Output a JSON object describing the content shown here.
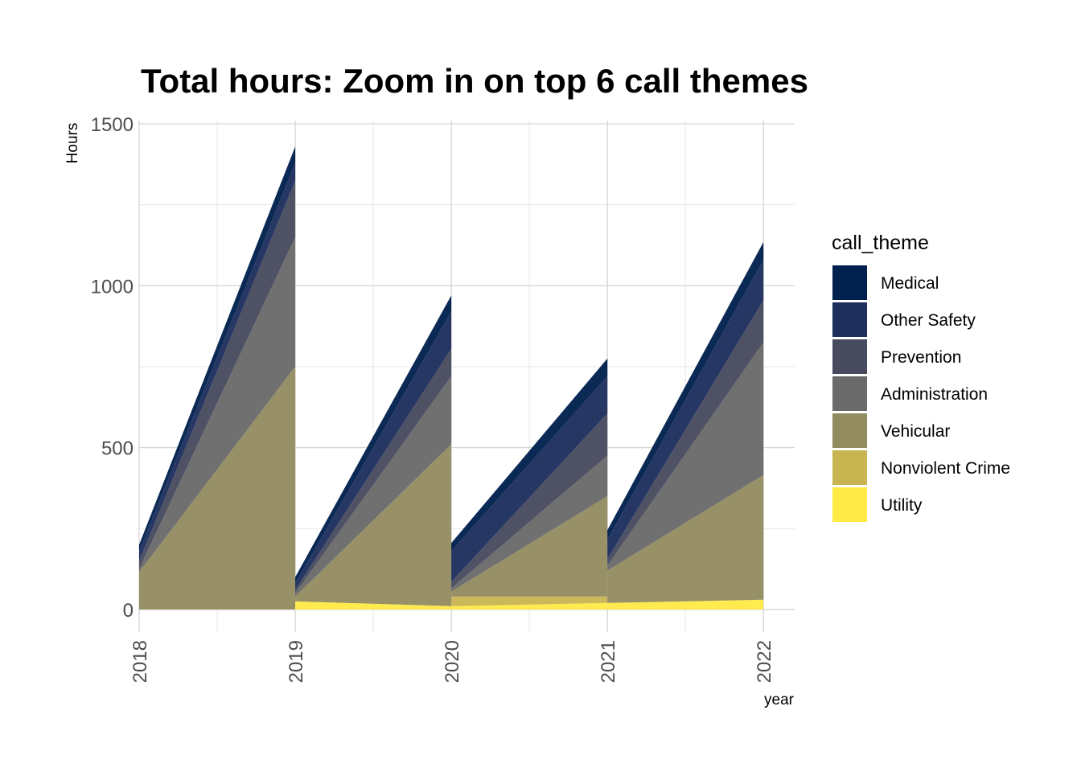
{
  "chart_data": {
    "type": "area",
    "title": "Total hours: Zoom in on top 6 call themes",
    "xlabel": "year",
    "ylabel": "Hours",
    "x_ticks": [
      "2018",
      "2019",
      "2020",
      "2021",
      "2022"
    ],
    "y_ticks": [
      "0",
      "500",
      "1000",
      "1500"
    ],
    "xlim": [
      2018,
      2022.2
    ],
    "ylim": [
      -70,
      1510
    ],
    "grid": true,
    "legend": {
      "title": "call_theme",
      "placement": "right"
    },
    "stack_order_bottom_to_top": [
      "Utility",
      "Nonviolent Crime",
      "Vehicular",
      "Administration",
      "Prevention",
      "Other Safety",
      "Medical"
    ],
    "segments": [
      {
        "x_start": 2018,
        "x_end": 2019,
        "series": [
          {
            "name": "Utility",
            "start": 0,
            "end": 0
          },
          {
            "name": "Nonviolent Crime",
            "start": 0,
            "end": 0
          },
          {
            "name": "Vehicular",
            "start": 115,
            "end": 750
          },
          {
            "name": "Administration",
            "start": 10,
            "end": 400
          },
          {
            "name": "Prevention",
            "start": 25,
            "end": 175
          },
          {
            "name": "Other Safety",
            "start": 30,
            "end": 55
          },
          {
            "name": "Medical",
            "start": 20,
            "end": 50
          }
        ]
      },
      {
        "x_start": 2019,
        "x_end": 2020,
        "series": [
          {
            "name": "Utility",
            "start": 25,
            "end": 10
          },
          {
            "name": "Nonviolent Crime",
            "start": 0,
            "end": 0
          },
          {
            "name": "Vehicular",
            "start": 15,
            "end": 500
          },
          {
            "name": "Administration",
            "start": 10,
            "end": 210
          },
          {
            "name": "Prevention",
            "start": 10,
            "end": 85
          },
          {
            "name": "Other Safety",
            "start": 20,
            "end": 115
          },
          {
            "name": "Medical",
            "start": 20,
            "end": 50
          }
        ]
      },
      {
        "x_start": 2020,
        "x_end": 2021,
        "series": [
          {
            "name": "Utility",
            "start": 10,
            "end": 20
          },
          {
            "name": "Nonviolent Crime",
            "start": 30,
            "end": 20
          },
          {
            "name": "Vehicular",
            "start": 15,
            "end": 310
          },
          {
            "name": "Administration",
            "start": 10,
            "end": 125
          },
          {
            "name": "Prevention",
            "start": 20,
            "end": 130
          },
          {
            "name": "Other Safety",
            "start": 95,
            "end": 115
          },
          {
            "name": "Medical",
            "start": 25,
            "end": 55
          }
        ]
      },
      {
        "x_start": 2021,
        "x_end": 2022,
        "series": [
          {
            "name": "Utility",
            "start": 20,
            "end": 30
          },
          {
            "name": "Nonviolent Crime",
            "start": 0,
            "end": 0
          },
          {
            "name": "Vehicular",
            "start": 100,
            "end": 385
          },
          {
            "name": "Administration",
            "start": 15,
            "end": 410
          },
          {
            "name": "Prevention",
            "start": 20,
            "end": 130
          },
          {
            "name": "Other Safety",
            "start": 60,
            "end": 125
          },
          {
            "name": "Medical",
            "start": 30,
            "end": 55
          }
        ]
      }
    ],
    "legend_items": [
      {
        "name": "Medical",
        "color": "#00204D"
      },
      {
        "name": "Other Safety",
        "color": "#1E2F5E"
      },
      {
        "name": "Prevention",
        "color": "#484B5E"
      },
      {
        "name": "Administration",
        "color": "#6A6A6A"
      },
      {
        "name": "Vehicular",
        "color": "#948C61"
      },
      {
        "name": "Nonviolent Crime",
        "color": "#C8B552"
      },
      {
        "name": "Utility",
        "color": "#FFEA46"
      }
    ]
  }
}
